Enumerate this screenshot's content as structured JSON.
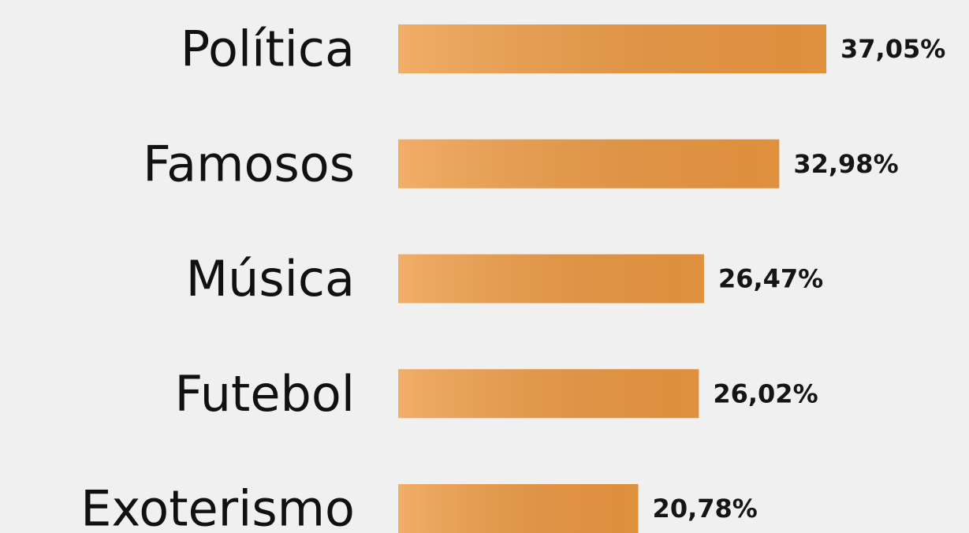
{
  "chart_data": {
    "type": "bar",
    "orientation": "horizontal",
    "categories": [
      "Política",
      "Famosos",
      "Música",
      "Futebol",
      "Exoterismo"
    ],
    "values": [
      37.05,
      32.98,
      26.47,
      26.02,
      20.78
    ],
    "value_labels": [
      "37,05%",
      "32,98%",
      "26,47%",
      "26,02%",
      "20,78%"
    ],
    "color": "#ee9a42"
  }
}
